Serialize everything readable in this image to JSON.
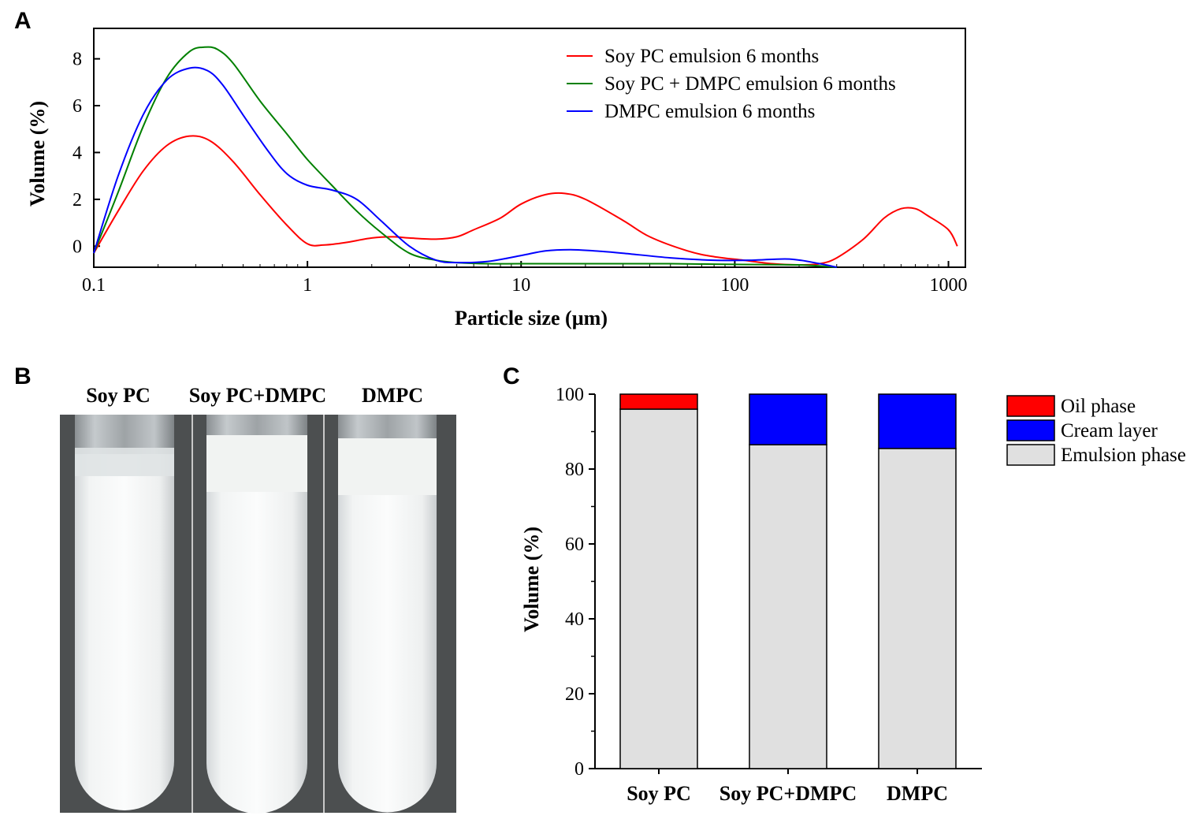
{
  "panels": {
    "a": "A",
    "b": "B",
    "c": "C"
  },
  "chart_data": [
    {
      "panel": "A",
      "type": "line",
      "xlabel": "Particle size (µm)",
      "ylabel": "Volume (%)",
      "xscale": "log",
      "xlim": [
        0.1,
        1200
      ],
      "ylim": [
        -0.9,
        9.3
      ],
      "xticks": [
        {
          "value": 0.1,
          "label": "0.1"
        },
        {
          "value": 1,
          "label": "1"
        },
        {
          "value": 10,
          "label": "10"
        },
        {
          "value": 100,
          "label": "100"
        },
        {
          "value": 1000,
          "label": "1000"
        }
      ],
      "yticks": [
        {
          "value": 0,
          "label": "0"
        },
        {
          "value": 2,
          "label": "2"
        },
        {
          "value": 4,
          "label": "4"
        },
        {
          "value": 6,
          "label": "6"
        },
        {
          "value": 8,
          "label": "8"
        }
      ],
      "legend_position": "top-right",
      "series": [
        {
          "name": "Soy PC emulsion 6 months",
          "color": "#ff0000",
          "x": [
            0.1,
            0.13,
            0.17,
            0.22,
            0.28,
            0.35,
            0.45,
            0.6,
            0.8,
            1.0,
            1.2,
            1.5,
            2.0,
            2.5,
            3.0,
            4.0,
            5.0,
            6.0,
            8.0,
            10,
            13,
            16,
            20,
            30,
            40,
            60,
            80,
            110,
            150,
            200,
            250,
            300,
            400,
            500,
            600,
            700,
            800,
            1000,
            1100
          ],
          "y": [
            -0.3,
            1.5,
            3.2,
            4.3,
            4.7,
            4.5,
            3.6,
            2.2,
            0.9,
            0.1,
            0.05,
            0.15,
            0.35,
            0.4,
            0.35,
            0.3,
            0.4,
            0.7,
            1.2,
            1.8,
            2.2,
            2.25,
            2.0,
            1.1,
            0.4,
            -0.2,
            -0.45,
            -0.6,
            -0.75,
            -0.8,
            -0.75,
            -0.5,
            0.3,
            1.2,
            1.6,
            1.6,
            1.3,
            0.7,
            0.0
          ]
        },
        {
          "name": "Soy PC + DMPC emulsion 6 months",
          "color": "#008000",
          "x": [
            0.1,
            0.13,
            0.17,
            0.22,
            0.28,
            0.33,
            0.38,
            0.45,
            0.6,
            0.8,
            1.0,
            1.3,
            1.7,
            2.2,
            3.0,
            4.0,
            5.0,
            7.0,
            10,
            20,
            50,
            100,
            200,
            300
          ],
          "y": [
            -0.3,
            2.3,
            5.1,
            7.2,
            8.3,
            8.5,
            8.4,
            7.8,
            6.2,
            4.8,
            3.7,
            2.6,
            1.5,
            0.6,
            -0.3,
            -0.6,
            -0.7,
            -0.75,
            -0.75,
            -0.75,
            -0.75,
            -0.78,
            -0.8,
            -0.9
          ]
        },
        {
          "name": "DMPC emulsion 6 months",
          "color": "#0000ff",
          "x": [
            0.1,
            0.13,
            0.17,
            0.22,
            0.28,
            0.34,
            0.4,
            0.5,
            0.65,
            0.8,
            1.0,
            1.3,
            1.7,
            2.2,
            3.0,
            4.0,
            5.0,
            7.0,
            10,
            13,
            17,
            22,
            30,
            50,
            80,
            120,
            180,
            250,
            300
          ],
          "y": [
            -0.3,
            3.0,
            5.6,
            7.1,
            7.6,
            7.5,
            6.9,
            5.6,
            4.1,
            3.1,
            2.6,
            2.4,
            2.0,
            1.1,
            0.0,
            -0.6,
            -0.7,
            -0.65,
            -0.4,
            -0.2,
            -0.15,
            -0.2,
            -0.3,
            -0.5,
            -0.6,
            -0.6,
            -0.55,
            -0.75,
            -0.9
          ]
        }
      ]
    },
    {
      "panel": "C",
      "type": "bar",
      "stacked": true,
      "ylabel": "Volume (%)",
      "ylim": [
        0,
        100
      ],
      "yticks": [
        0,
        20,
        40,
        60,
        80,
        100
      ],
      "categories": [
        "Soy PC",
        "Soy PC+DMPC",
        "DMPC"
      ],
      "legend_position": "top-right",
      "series": [
        {
          "name": "Emulsion phase",
          "color": "#e0e0e0",
          "values": [
            96,
            86.5,
            85.5
          ]
        },
        {
          "name": "Cream layer",
          "color": "#0000ff",
          "values": [
            0,
            13.5,
            14.5
          ]
        },
        {
          "name": "Oil phase",
          "color": "#ff0000",
          "values": [
            4,
            0,
            0
          ]
        }
      ],
      "legend_order": [
        "Oil phase",
        "Cream layer",
        "Emulsion phase"
      ]
    }
  ],
  "photo": {
    "labels": [
      "Soy PC",
      "Soy PC+DMPC",
      "DMPC"
    ]
  }
}
